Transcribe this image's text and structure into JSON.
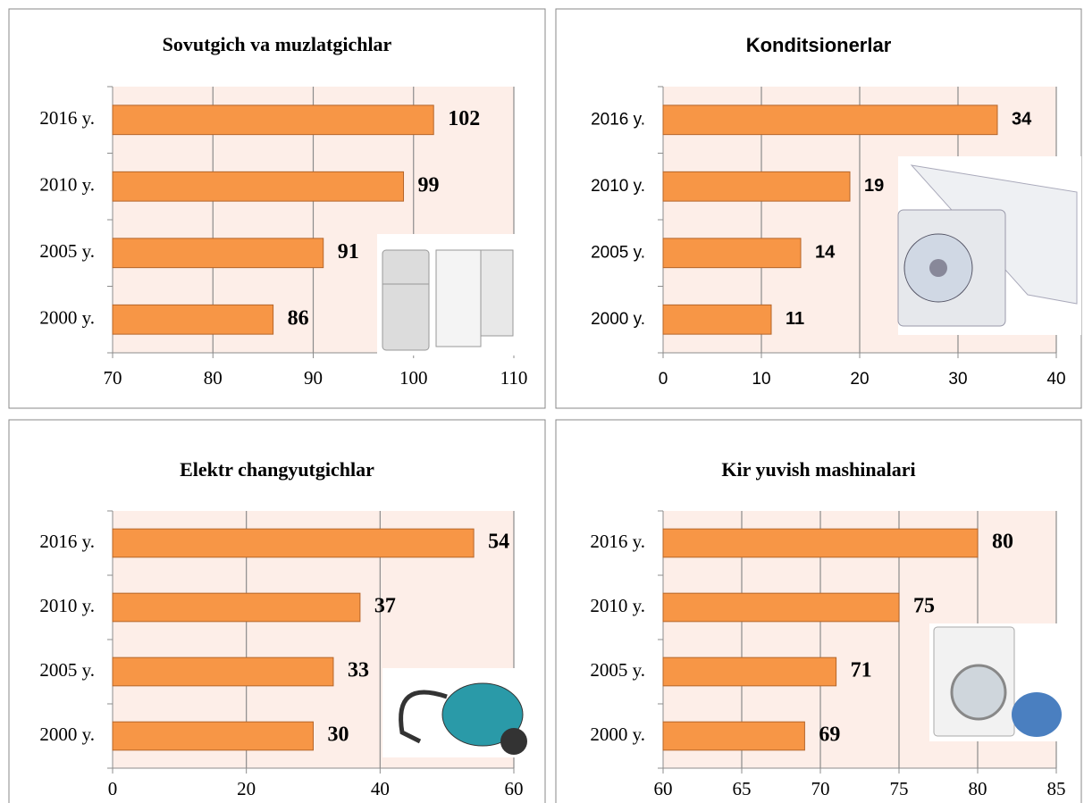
{
  "chart_data": [
    {
      "type": "bar",
      "title": "Sovutgich va muzlatgichlar",
      "categories": [
        "2016 y.",
        "2010 y.",
        "2005 y.",
        "2000 y."
      ],
      "values": [
        102,
        99,
        91,
        86
      ],
      "color": "#f79646",
      "xlim": [
        70,
        110
      ],
      "xticks": [
        70,
        80,
        90,
        100,
        110
      ],
      "grid": true
    },
    {
      "type": "bar",
      "title": "Konditsionerlar",
      "categories": [
        "2016 y.",
        "2010 y.",
        "2005 y.",
        "2000 y."
      ],
      "values": [
        34,
        19,
        14,
        11
      ],
      "color": "#f79646",
      "xlim": [
        0,
        40
      ],
      "xticks": [
        0,
        10,
        20,
        30,
        40
      ],
      "grid": true
    },
    {
      "type": "bar",
      "title": "Elektr changyutgichlar",
      "categories": [
        "2016 y.",
        "2010 y.",
        "2005 y.",
        "2000 y."
      ],
      "values": [
        54,
        37,
        33,
        30
      ],
      "color": "#f79646",
      "xlim": [
        0,
        60
      ],
      "xticks": [
        0,
        20,
        40,
        60
      ],
      "grid": true
    },
    {
      "type": "bar",
      "title": "Kir yuvish mashinalari",
      "categories": [
        "2016 y.",
        "2010 y.",
        "2005 y.",
        "2000 y."
      ],
      "values": [
        80,
        75,
        71,
        69
      ],
      "color": "#f79646",
      "xlim": [
        60,
        85
      ],
      "xticks": [
        60,
        65,
        70,
        75,
        80,
        85
      ],
      "grid": true
    }
  ]
}
